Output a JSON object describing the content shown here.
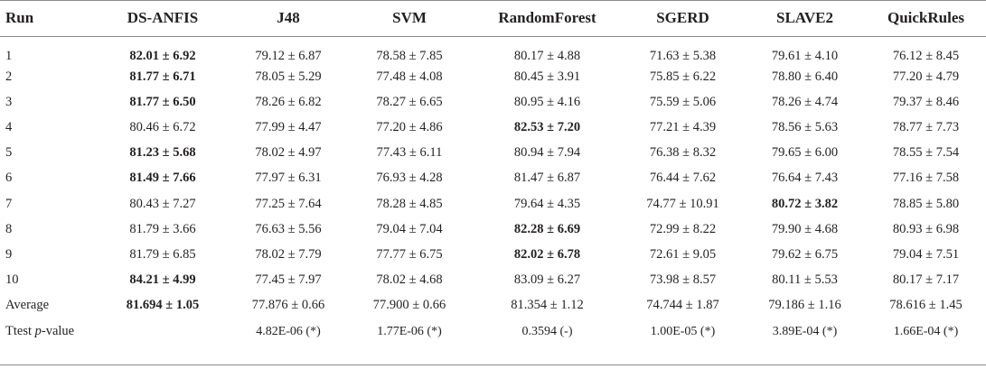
{
  "table": {
    "headers": [
      "Run",
      "DS-ANFIS",
      "J48",
      "SVM",
      "RandomForest",
      "SGERD",
      "SLAVE2",
      "QuickRules"
    ],
    "rows": [
      {
        "label": "1",
        "cells": [
          "82.01 ± 6.92",
          "79.12 ± 6.87",
          "78.58 ± 7.85",
          "80.17 ± 4.88",
          "71.63 ± 5.38",
          "79.61 ± 4.10",
          "76.12 ± 8.45"
        ],
        "bold": [
          true,
          false,
          false,
          false,
          false,
          false,
          false
        ]
      },
      {
        "label": "2",
        "cells": [
          "81.77 ± 6.71",
          "78.05 ± 5.29",
          "77.48 ± 4.08",
          "80.45 ± 3.91",
          "75.85 ± 6.22",
          "78.80 ± 6.40",
          "77.20 ± 4.79"
        ],
        "bold": [
          true,
          false,
          false,
          false,
          false,
          false,
          false
        ]
      },
      {
        "label": "3",
        "cells": [
          "81.77 ± 6.50",
          "78.26 ± 6.82",
          "78.27 ± 6.65",
          "80.95 ± 4.16",
          "75.59 ± 5.06",
          "78.26 ± 4.74",
          "79.37 ± 8.46"
        ],
        "bold": [
          true,
          false,
          false,
          false,
          false,
          false,
          false
        ]
      },
      {
        "label": "4",
        "cells": [
          "80.46 ± 6.72",
          "77.99 ± 4.47",
          "77.20 ± 4.86",
          "82.53 ± 7.20",
          "77.21 ± 4.39",
          "78.56 ± 5.63",
          "78.77 ± 7.73"
        ],
        "bold": [
          false,
          false,
          false,
          true,
          false,
          false,
          false
        ]
      },
      {
        "label": "5",
        "cells": [
          "81.23 ± 5.68",
          "78.02 ± 4.97",
          "77.43 ± 6.11",
          "80.94 ± 7.94",
          "76.38 ± 8.32",
          "79.65 ± 6.00",
          "78.55 ± 7.54"
        ],
        "bold": [
          true,
          false,
          false,
          false,
          false,
          false,
          false
        ]
      },
      {
        "label": "6",
        "cells": [
          "81.49 ± 7.66",
          "77.97 ± 6.31",
          "76.93 ± 4.28",
          "81.47 ± 6.87",
          "76.44 ± 7.62",
          "76.64 ± 7.43",
          "77.16 ± 7.58"
        ],
        "bold": [
          true,
          false,
          false,
          false,
          false,
          false,
          false
        ]
      },
      {
        "label": "7",
        "cells": [
          "80.43 ± 7.27",
          "77.25 ± 7.64",
          "78.28 ± 4.85",
          "79.64 ± 4.35",
          "74.77 ± 10.91",
          "80.72 ± 3.82",
          "78.85 ± 5.80"
        ],
        "bold": [
          false,
          false,
          false,
          false,
          false,
          true,
          false
        ]
      },
      {
        "label": "8",
        "cells": [
          "81.79 ± 3.66",
          "76.63 ± 5.56",
          "79.04 ± 7.04",
          "82.28 ± 6.69",
          "72.99 ± 8.22",
          "79.90 ± 4.68",
          "80.93 ± 6.98"
        ],
        "bold": [
          false,
          false,
          false,
          true,
          false,
          false,
          false
        ]
      },
      {
        "label": "9",
        "cells": [
          "81.79 ± 6.85",
          "78.02 ± 7.79",
          "77.77 ± 6.75",
          "82.02 ± 6.78",
          "72.61 ± 9.05",
          "79.62 ± 6.75",
          "79.04 ± 7.51"
        ],
        "bold": [
          false,
          false,
          false,
          true,
          false,
          false,
          false
        ]
      },
      {
        "label": "10",
        "cells": [
          "84.21 ± 4.99",
          "77.45 ± 7.97",
          "78.02 ± 4.68",
          "83.09 ± 6.27",
          "73.98 ± 8.57",
          "80.11 ± 5.53",
          "80.17 ± 7.17"
        ],
        "bold": [
          true,
          false,
          false,
          false,
          false,
          false,
          false
        ]
      },
      {
        "label": "Average",
        "cells": [
          "81.694 ± 1.05",
          "77.876 ± 0.66",
          "77.900 ± 0.66",
          "81.354 ± 1.12",
          "74.744 ± 1.87",
          "79.186 ± 1.16",
          "78.616 ± 1.45"
        ],
        "bold": [
          true,
          false,
          false,
          false,
          false,
          false,
          false
        ]
      }
    ],
    "ttest": {
      "label_prefix": "Ttest ",
      "label_italic": "p",
      "label_suffix": "-value",
      "cells": [
        "",
        "4.82E-06 (*)",
        "1.77E-06 (*)",
        "0.3594 (-)",
        "1.00E-05 (*)",
        "3.89E-04 (*)",
        "1.66E-04 (*)"
      ]
    }
  }
}
